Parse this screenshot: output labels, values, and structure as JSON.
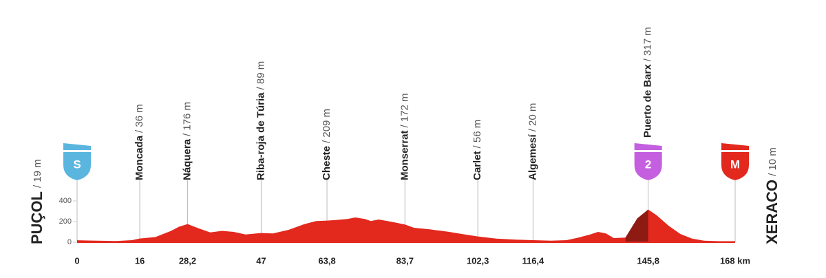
{
  "chart_data": {
    "type": "area",
    "xlim": [
      0,
      168
    ],
    "ylim": [
      0,
      400
    ],
    "yticks": [
      0,
      200,
      400
    ],
    "xticks": [
      0,
      16,
      {
        "value": 28.2,
        "label": "28,2"
      },
      47,
      {
        "value": 63.8,
        "label": "63,8"
      },
      {
        "value": 83.7,
        "label": "83,7"
      },
      {
        "value": 102.3,
        "label": "102,3"
      },
      {
        "value": 116.4,
        "label": "116,4"
      },
      {
        "value": 145.8,
        "label": "145,8"
      },
      {
        "value": 168,
        "label": "168 km"
      }
    ],
    "series": [
      {
        "color": "#e3281e",
        "x": [
          0,
          5,
          10,
          14,
          16,
          20,
          24,
          26,
          28.2,
          31,
          34,
          37,
          40,
          43,
          47,
          50,
          54,
          58,
          61,
          63.8,
          66,
          69,
          71,
          73.5,
          75,
          77,
          80,
          83.7,
          86,
          90,
          95,
          99,
          102.3,
          107,
          112,
          116.4,
          121,
          125,
          128,
          131,
          133,
          135,
          137,
          140,
          143,
          145.8,
          148,
          151,
          154,
          157,
          160,
          164,
          168
        ],
        "values": [
          19,
          15,
          12,
          20,
          36,
          50,
          110,
          150,
          176,
          135,
          95,
          110,
          100,
          75,
          89,
          85,
          120,
          175,
          205,
          209,
          215,
          225,
          240,
          225,
          205,
          220,
          200,
          172,
          140,
          125,
          100,
          75,
          56,
          35,
          25,
          20,
          15,
          20,
          45,
          75,
          100,
          85,
          40,
          45,
          230,
          317,
          260,
          160,
          80,
          35,
          15,
          10,
          10
        ]
      }
    ],
    "climb": {
      "start_km": 140,
      "end_km": 145.8,
      "color": "#8e1a14"
    },
    "start": {
      "name": "PUÇOL",
      "label": "/ 19 m",
      "badge": "S",
      "badge_color": "#5ab6df",
      "km": 0
    },
    "finish": {
      "name": "XERACO",
      "label": "/ 10 m",
      "badge": "M",
      "badge_color": "#e3281e",
      "km": 168
    },
    "waypoints": [
      {
        "name": "Moncada",
        "label": "/ 36 m",
        "km": 16
      },
      {
        "name": "Náquera",
        "label": "/ 176 m",
        "km": 28.2
      },
      {
        "name": "Riba-roja de Túria",
        "label": "/ 89 m",
        "km": 47
      },
      {
        "name": "Cheste",
        "label": "/ 209 m",
        "km": 63.8
      },
      {
        "name": "Monserrat",
        "label": "/ 172 m",
        "km": 83.7
      },
      {
        "name": "Carlet",
        "label": "/ 56 m",
        "km": 102.3
      },
      {
        "name": "Algemesí",
        "label": "/ 20 m",
        "km": 116.4
      },
      {
        "name": "Puerto de Barx",
        "label": "/ 317 m",
        "km": 145.8,
        "badge": "2",
        "badge_color": "#c45fe0"
      }
    ]
  }
}
